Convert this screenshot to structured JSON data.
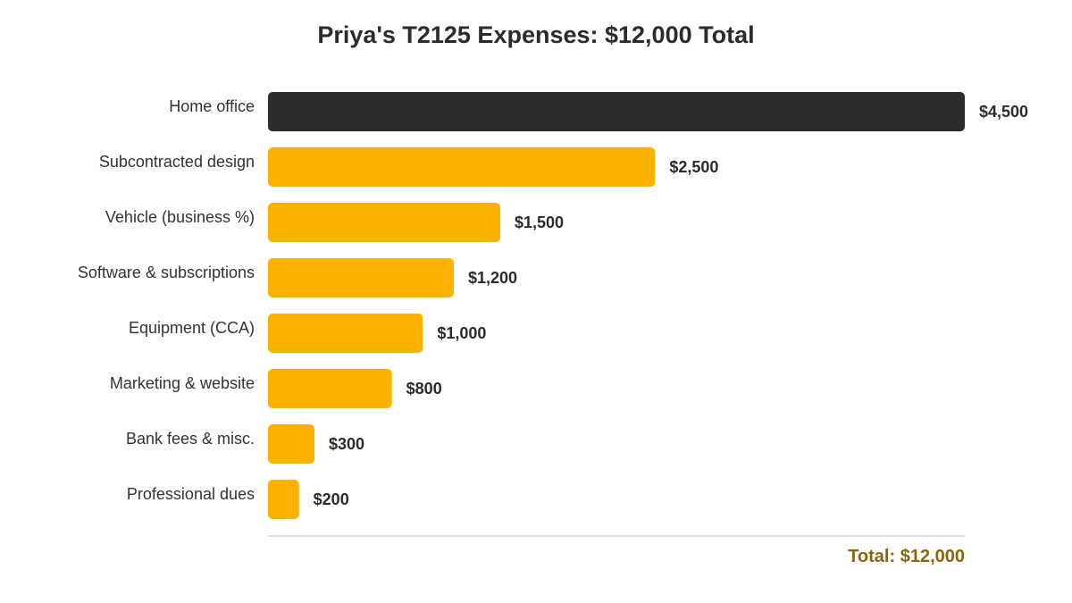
{
  "chart_data": {
    "type": "bar",
    "orientation": "horizontal",
    "title": "Priya's T2125 Expenses: $12,000 Total",
    "categories": [
      "Home office",
      "Subcontracted design",
      "Vehicle (business %)",
      "Software & subscriptions",
      "Equipment (CCA)",
      "Marketing & website",
      "Bank fees & misc.",
      "Professional dues"
    ],
    "values": [
      4500,
      2500,
      1500,
      1200,
      1000,
      800,
      300,
      200
    ],
    "value_labels": [
      "$4,500",
      "$2,500",
      "$1,500",
      "$1,200",
      "$1,000",
      "$800",
      "$300",
      "$200"
    ],
    "highlight_index": 0,
    "xlim": [
      0,
      4500
    ],
    "grid": false,
    "total_label": "Total: $12,000"
  },
  "colors": {
    "highlight": "#2d2d2d",
    "bar": "#fdb100",
    "category_text": "#333333",
    "value_text": "#2b2b2b",
    "axis_line": "#d6d6d6",
    "total_text": "#8a6510"
  }
}
